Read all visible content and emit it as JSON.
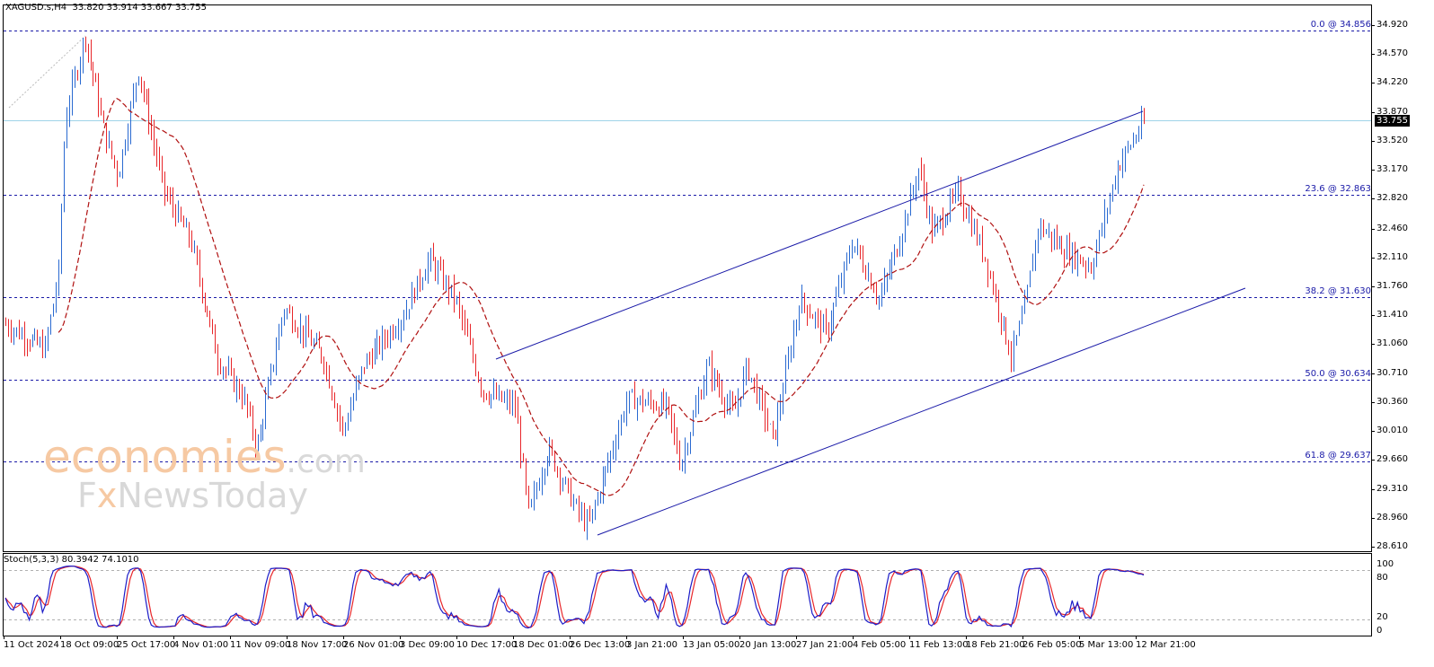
{
  "header": {
    "symbol": "XAGUSD.s,H4",
    "ohlc": "33.820 33.914 33.667 33.755"
  },
  "current_price": "33.755",
  "price_axis": [
    "34.920",
    "34.570",
    "34.220",
    "33.870",
    "33.520",
    "33.170",
    "32.820",
    "32.460",
    "32.110",
    "31.760",
    "31.410",
    "31.060",
    "30.710",
    "30.360",
    "30.010",
    "29.660",
    "29.310",
    "28.960",
    "28.610"
  ],
  "fib_levels": [
    {
      "label": "0.0 @ 34.856",
      "value": 34.856
    },
    {
      "label": "23.6 @ 32.863",
      "value": 32.863
    },
    {
      "label": "38.2 @ 31.630",
      "value": 31.63
    },
    {
      "label": "50.0 @ 30.634",
      "value": 30.634
    },
    {
      "label": "61.8 @ 29.637",
      "value": 29.637
    }
  ],
  "dates": [
    "11 Oct 2024",
    "18 Oct 09:00",
    "25 Oct 17:00",
    "4 Nov 01:00",
    "11 Nov 09:00",
    "18 Nov 17:00",
    "26 Nov 01:00",
    "3 Dec 09:00",
    "10 Dec 17:00",
    "18 Dec 01:00",
    "26 Dec 13:00",
    "3 Jan 21:00",
    "13 Jan 05:00",
    "20 Jan 13:00",
    "27 Jan 21:00",
    "4 Feb 05:00",
    "11 Feb 13:00",
    "18 Feb 21:00",
    "26 Feb 05:00",
    "5 Mar 13:00",
    "12 Mar 21:00"
  ],
  "stochastic": {
    "label": "Stoch(5,3,3) 80.3942 74.1010",
    "axis": [
      "100",
      "80",
      "20",
      "0"
    ],
    "main_color": "#1c1cc8",
    "signal_color": "#e8262a"
  },
  "watermark": {
    "brand_a": "economies",
    "brand_a_suffix": ".com",
    "brand_b_1": "F",
    "brand_b_x": "x",
    "brand_b_2": "NewsToday"
  },
  "colors": {
    "bull": "#2a6ad1",
    "bear": "#e8262a",
    "ma": "#b01010",
    "channel": "#1a1aa8",
    "fib": "#1a1aa8",
    "current_line": "#9fd3e8"
  },
  "chart_data": {
    "type": "candlestick",
    "symbol": "XAGUSD.s",
    "timeframe": "H4",
    "ylim": [
      28.61,
      34.92
    ],
    "anchors": [
      {
        "t": 0,
        "p": 31.3
      },
      {
        "t": 0.03,
        "p": 31.0
      },
      {
        "t": 0.04,
        "p": 31.9
      },
      {
        "t": 0.045,
        "p": 33.8
      },
      {
        "t": 0.06,
        "p": 34.8
      },
      {
        "t": 0.075,
        "p": 33.6
      },
      {
        "t": 0.085,
        "p": 33.1
      },
      {
        "t": 0.1,
        "p": 34.4
      },
      {
        "t": 0.12,
        "p": 32.9
      },
      {
        "t": 0.14,
        "p": 32.3
      },
      {
        "t": 0.16,
        "p": 30.9
      },
      {
        "t": 0.18,
        "p": 30.4
      },
      {
        "t": 0.19,
        "p": 29.8
      },
      {
        "t": 0.21,
        "p": 31.5
      },
      {
        "t": 0.24,
        "p": 30.9
      },
      {
        "t": 0.255,
        "p": 30.0
      },
      {
        "t": 0.27,
        "p": 30.8
      },
      {
        "t": 0.3,
        "p": 31.4
      },
      {
        "t": 0.32,
        "p": 32.1
      },
      {
        "t": 0.34,
        "p": 31.6
      },
      {
        "t": 0.36,
        "p": 30.5
      },
      {
        "t": 0.385,
        "p": 30.3
      },
      {
        "t": 0.395,
        "p": 29.0
      },
      {
        "t": 0.41,
        "p": 29.8
      },
      {
        "t": 0.43,
        "p": 29.1
      },
      {
        "t": 0.44,
        "p": 28.85
      },
      {
        "t": 0.47,
        "p": 30.4
      },
      {
        "t": 0.5,
        "p": 30.3
      },
      {
        "t": 0.51,
        "p": 29.6
      },
      {
        "t": 0.53,
        "p": 30.8
      },
      {
        "t": 0.55,
        "p": 30.2
      },
      {
        "t": 0.56,
        "p": 30.8
      },
      {
        "t": 0.58,
        "p": 29.9
      },
      {
        "t": 0.6,
        "p": 31.6
      },
      {
        "t": 0.62,
        "p": 31.2
      },
      {
        "t": 0.64,
        "p": 32.3
      },
      {
        "t": 0.66,
        "p": 31.6
      },
      {
        "t": 0.675,
        "p": 32.3
      },
      {
        "t": 0.69,
        "p": 33.2
      },
      {
        "t": 0.7,
        "p": 32.4
      },
      {
        "t": 0.72,
        "p": 32.9
      },
      {
        "t": 0.74,
        "p": 32.1
      },
      {
        "t": 0.76,
        "p": 30.9
      },
      {
        "t": 0.77,
        "p": 31.5
      },
      {
        "t": 0.78,
        "p": 32.5
      },
      {
        "t": 0.8,
        "p": 32.2
      },
      {
        "t": 0.82,
        "p": 32.0
      },
      {
        "t": 0.84,
        "p": 33.2
      },
      {
        "t": 0.86,
        "p": 33.75
      }
    ]
  }
}
